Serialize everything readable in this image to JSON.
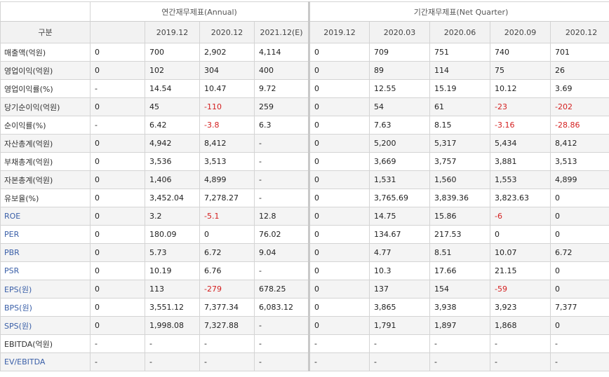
{
  "header": {
    "annual_group": "연간재무제표(Annual)",
    "quarter_group": "기간재무제표(Net Quarter)",
    "label_col": "구분",
    "columns": [
      "",
      "2019.12",
      "2020.12",
      "2021.12(E)",
      "2019.12",
      "2020.03",
      "2020.06",
      "2020.09",
      "2020.12"
    ]
  },
  "rows": [
    {
      "label": "매출액(억원)",
      "values": [
        "0",
        "700",
        "2,902",
        "4,114",
        "0",
        "709",
        "751",
        "740",
        "701"
      ]
    },
    {
      "label": "영업이익(억원)",
      "values": [
        "0",
        "102",
        "304",
        "400",
        "0",
        "89",
        "114",
        "75",
        "26"
      ]
    },
    {
      "label": "영업이익률(%)",
      "values": [
        "-",
        "14.54",
        "10.47",
        "9.72",
        "0",
        "12.55",
        "15.19",
        "10.12",
        "3.69"
      ]
    },
    {
      "label": "당기순이익(억원)",
      "values": [
        "0",
        "45",
        "-110",
        "259",
        "0",
        "54",
        "61",
        "-23",
        "-202"
      ]
    },
    {
      "label": "순이익률(%)",
      "values": [
        "-",
        "6.42",
        "-3.8",
        "6.3",
        "0",
        "7.63",
        "8.15",
        "-3.16",
        "-28.86"
      ]
    },
    {
      "label": "자산총계(억원)",
      "values": [
        "0",
        "4,942",
        "8,412",
        "-",
        "0",
        "5,200",
        "5,317",
        "5,434",
        "8,412"
      ]
    },
    {
      "label": "부채총계(억원)",
      "values": [
        "0",
        "3,536",
        "3,513",
        "-",
        "0",
        "3,669",
        "3,757",
        "3,881",
        "3,513"
      ]
    },
    {
      "label": "자본총계(억원)",
      "values": [
        "0",
        "1,406",
        "4,899",
        "-",
        "0",
        "1,531",
        "1,560",
        "1,553",
        "4,899"
      ]
    },
    {
      "label": "유보율(%)",
      "values": [
        "0",
        "3,452.04",
        "7,278.27",
        "-",
        "0",
        "3,765.69",
        "3,839.36",
        "3,823.63",
        "0"
      ]
    },
    {
      "label": "ROE",
      "values": [
        "0",
        "3.2",
        "-5.1",
        "12.8",
        "0",
        "14.75",
        "15.86",
        "-6",
        "0"
      ]
    },
    {
      "label": "PER",
      "values": [
        "0",
        "180.09",
        "0",
        "76.02",
        "0",
        "134.67",
        "217.53",
        "0",
        "0"
      ]
    },
    {
      "label": "PBR",
      "values": [
        "0",
        "5.73",
        "6.72",
        "9.04",
        "0",
        "4.77",
        "8.51",
        "10.07",
        "6.72"
      ]
    },
    {
      "label": "PSR",
      "values": [
        "0",
        "10.19",
        "6.76",
        "-",
        "0",
        "10.3",
        "17.66",
        "21.15",
        "0"
      ]
    },
    {
      "label": "EPS(원)",
      "values": [
        "0",
        "113",
        "-279",
        "678.25",
        "0",
        "137",
        "154",
        "-59",
        "0"
      ]
    },
    {
      "label": "BPS(원)",
      "values": [
        "0",
        "3,551.12",
        "7,377.34",
        "6,083.12",
        "0",
        "3,865",
        "3,938",
        "3,923",
        "7,377"
      ]
    },
    {
      "label": "SPS(원)",
      "values": [
        "0",
        "1,998.08",
        "7,327.88",
        "-",
        "0",
        "1,791",
        "1,897",
        "1,868",
        "0"
      ]
    },
    {
      "label": "EBITDA(억원)",
      "values": [
        "-",
        "-",
        "-",
        "-",
        "-",
        "-",
        "-",
        "-",
        "-"
      ]
    },
    {
      "label": "EV/EBITDA",
      "values": [
        "-",
        "-",
        "-",
        "-",
        "-",
        "-",
        "-",
        "-",
        "-"
      ]
    }
  ],
  "styles": {
    "link_label_color": "#3a5fa8",
    "negative_color": "#d42020",
    "link_rows": [
      "ROE",
      "PER",
      "PBR",
      "PSR",
      "EPS(원)",
      "BPS(원)",
      "SPS(원)",
      "EV/EBITDA"
    ]
  }
}
